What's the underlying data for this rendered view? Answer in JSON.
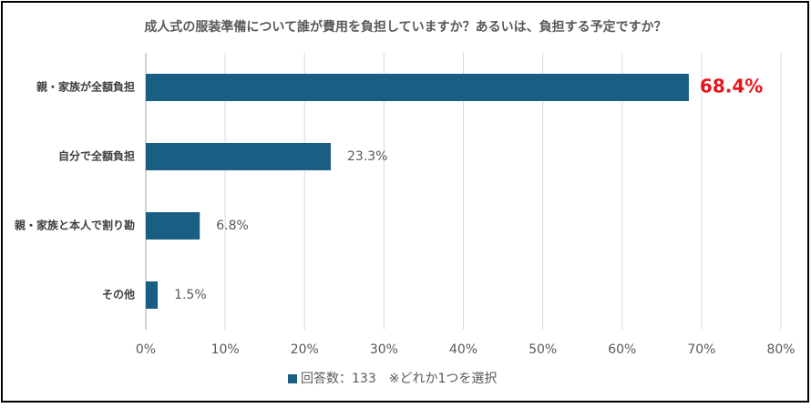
{
  "chart_data": {
    "type": "bar",
    "orientation": "horizontal",
    "title": "成人式の服装準備について誰が費用を負担していますか？あるいは、負担する予定ですか？",
    "categories": [
      "親・家族が全額負担",
      "自分で全額負担",
      "親・家族と本人で割り勘",
      "その他"
    ],
    "series": [
      {
        "name": "回答数：133　※どれか1つを選択",
        "color": "#1b5e84",
        "values": [
          68.4,
          23.3,
          6.8,
          1.5
        ],
        "value_labels": [
          "68.4%",
          "23.3%",
          "6.8%",
          "1.5%"
        ],
        "value_label_colors": [
          "#e8141b",
          "#595959",
          "#595959",
          "#595959"
        ]
      }
    ],
    "xlim": [
      0,
      80
    ],
    "xticks": [
      {
        "value": 0,
        "label": "0%"
      },
      {
        "value": 10,
        "label": "10%"
      },
      {
        "value": 20,
        "label": "20%"
      },
      {
        "value": 30,
        "label": "30%"
      },
      {
        "value": 40,
        "label": "40%"
      },
      {
        "value": 50,
        "label": "50%"
      },
      {
        "value": 60,
        "label": "60%"
      },
      {
        "value": 70,
        "label": "70%"
      },
      {
        "value": 80,
        "label": "80%"
      }
    ],
    "grid": true,
    "legend": "bottom"
  }
}
